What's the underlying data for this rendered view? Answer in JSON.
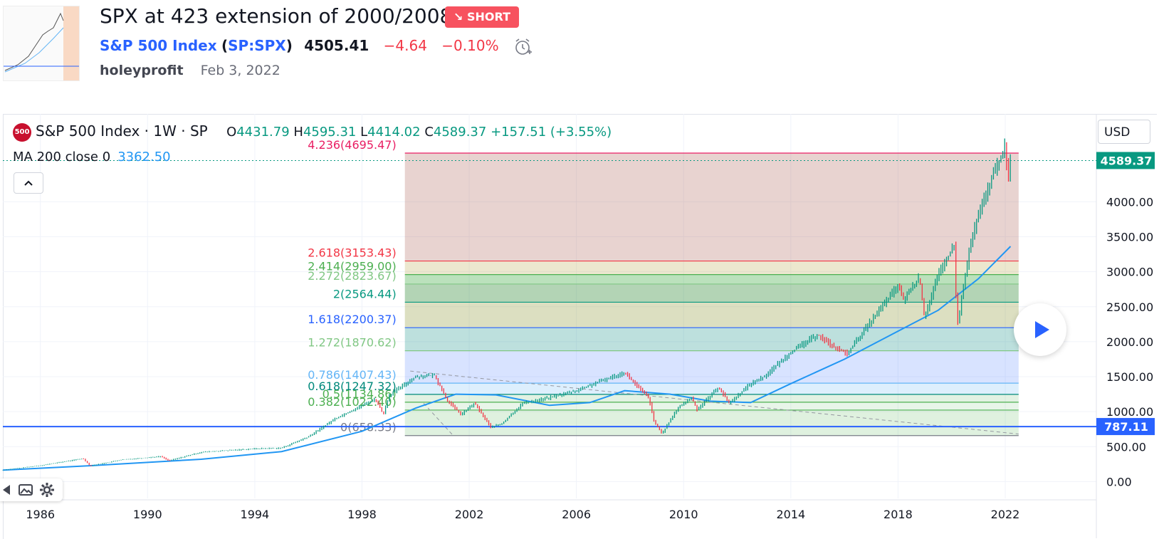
{
  "header": {
    "title": "SPX at 423 extension of 2000/2008",
    "badge": "↘ SHORT",
    "symbol_name": "S&P 500 Index",
    "symbol_ticker": "SP:SPX",
    "price": "4505.41",
    "change": "−4.64",
    "change_pct": "−0.10%",
    "author": "holeyprofit",
    "date": "Feb 3, 2022"
  },
  "legend": {
    "logo": "500",
    "title": "S&P 500 Index · 1W · SP",
    "o_label": "O",
    "o_value": "4431.79",
    "h_label": "H",
    "h_value": "4595.31",
    "l_label": "L",
    "l_value": "4414.02",
    "c_label": "C",
    "c_value": "4589.37",
    "change": "+157.51 (+3.55%)",
    "ma_label": "MA 200 close 0",
    "ma_value": "3362.50",
    "collapse": "^"
  },
  "toolbar": {
    "currency": "USD"
  },
  "colors": {
    "up": "#089981",
    "down": "#f23645",
    "ma": "#2196f3",
    "hline": "#2962ff"
  },
  "chart_data": {
    "type": "line",
    "title": "",
    "x_ticks": [
      "1986",
      "1990",
      "1994",
      "1998",
      "2002",
      "2006",
      "2010",
      "2014",
      "2018",
      "2022"
    ],
    "x_range": [
      1984.6,
      2025.4
    ],
    "y_ticks": [
      "0.00",
      "500.00",
      "1000.00",
      "1500.00",
      "2000.00",
      "2500.00",
      "3000.00",
      "3500.00",
      "4000.00"
    ],
    "y_range": [
      -240,
      4950
    ],
    "price_series": {
      "name": "S&P 500 Index",
      "points": [
        [
          1984.6,
          165
        ],
        [
          1986,
          230
        ],
        [
          1987.6,
          330
        ],
        [
          1987.85,
          225
        ],
        [
          1989,
          310
        ],
        [
          1990.5,
          360
        ],
        [
          1990.8,
          300
        ],
        [
          1992,
          420
        ],
        [
          1994,
          470
        ],
        [
          1995,
          480
        ],
        [
          1996,
          640
        ],
        [
          1997,
          900
        ],
        [
          1998.5,
          1180
        ],
        [
          1998.8,
          960
        ],
        [
          1999,
          1230
        ],
        [
          2000,
          1500
        ],
        [
          2000.7,
          1520
        ],
        [
          2001.2,
          1150
        ],
        [
          2001.7,
          960
        ],
        [
          2002.2,
          1120
        ],
        [
          2002.8,
          780
        ],
        [
          2003.2,
          820
        ],
        [
          2004,
          1120
        ],
        [
          2005,
          1200
        ],
        [
          2006,
          1300
        ],
        [
          2007,
          1450
        ],
        [
          2007.8,
          1560
        ],
        [
          2008.3,
          1350
        ],
        [
          2008.7,
          1200
        ],
        [
          2008.9,
          850
        ],
        [
          2009.2,
          690
        ],
        [
          2009.8,
          1060
        ],
        [
          2010.3,
          1200
        ],
        [
          2010.5,
          1030
        ],
        [
          2011.3,
          1350
        ],
        [
          2011.7,
          1120
        ],
        [
          2012.5,
          1400
        ],
        [
          2013,
          1500
        ],
        [
          2014,
          1850
        ],
        [
          2015,
          2100
        ],
        [
          2015.7,
          1900
        ],
        [
          2016.1,
          1830
        ],
        [
          2017,
          2300
        ],
        [
          2018,
          2800
        ],
        [
          2018.2,
          2600
        ],
        [
          2018.8,
          2920
        ],
        [
          2018.98,
          2350
        ],
        [
          2019.5,
          2950
        ],
        [
          2020.1,
          3380
        ],
        [
          2020.2,
          2200
        ],
        [
          2020.7,
          3400
        ],
        [
          2021,
          3800
        ],
        [
          2021.5,
          4350
        ],
        [
          2022,
          4790
        ],
        [
          2022.1,
          4300
        ],
        [
          2022.2,
          4589
        ]
      ]
    },
    "ma_series": {
      "name": "MA 200 close 0",
      "points": [
        [
          1984.6,
          165
        ],
        [
          1988,
          230
        ],
        [
          1992,
          320
        ],
        [
          1995,
          430
        ],
        [
          1998,
          720
        ],
        [
          2000,
          1050
        ],
        [
          2001.5,
          1250
        ],
        [
          2003,
          1240
        ],
        [
          2005,
          1090
        ],
        [
          2006.5,
          1130
        ],
        [
          2007.8,
          1300
        ],
        [
          2009.5,
          1250
        ],
        [
          2011,
          1150
        ],
        [
          2012.5,
          1130
        ],
        [
          2014,
          1400
        ],
        [
          2016,
          1750
        ],
        [
          2018,
          2150
        ],
        [
          2019.5,
          2450
        ],
        [
          2021,
          2900
        ],
        [
          2022.2,
          3362.5
        ]
      ]
    },
    "fib_levels": [
      {
        "label": "0(658.33)",
        "value": 658.33,
        "color": "#787b86",
        "fill": "rgba(76,175,80,0.18)"
      },
      {
        "label": "0.382(1022.40)",
        "value": 1022.4,
        "color": "#4caf50",
        "fill": "rgba(129,199,132,0.18)"
      },
      {
        "label": "0.5(1134.86)",
        "value": 1134.86,
        "color": "#4caf50",
        "fill": "rgba(76,175,80,0.16)"
      },
      {
        "label": "0.618(1247.32)",
        "value": 1247.32,
        "color": "#00897b",
        "fill": "rgba(100,181,246,0.22)"
      },
      {
        "label": "0.786(1407.43)",
        "value": 1407.43,
        "color": "#64b5f6",
        "fill": "rgba(41,98,255,0.18)"
      },
      {
        "label": "1.272(1870.62)",
        "value": 1870.62,
        "color": "#81c784",
        "fill": "rgba(0,137,123,0.26)"
      },
      {
        "label": "1.618(2200.37)",
        "value": 2200.37,
        "color": "#2962ff",
        "fill": "rgba(139,150,50,0.30)"
      },
      {
        "label": "2(2564.44)",
        "value": 2564.44,
        "color": "#089981",
        "fill": "rgba(56,142,60,0.38)"
      },
      {
        "label": "2.272(2823.67)",
        "value": 2823.67,
        "color": "#81c784",
        "fill": "rgba(76,175,80,0.38)"
      },
      {
        "label": "2.414(2959.00)",
        "value": 2959.0,
        "color": "#4caf50",
        "fill": "rgba(180,160,60,0.25)"
      },
      {
        "label": "2.618(3153.43)",
        "value": 3153.43,
        "color": "#f23645",
        "fill": "rgba(178,110,100,0.30)"
      },
      {
        "label": "4.236(4695.47)",
        "value": 4695.47,
        "color": "#e91e63",
        "fill": ""
      }
    ],
    "fib_x_range": [
      1999.6,
      2022.5
    ],
    "trend_line": {
      "points": [
        [
          1999.8,
          1580
        ],
        [
          2022.5,
          680
        ]
      ]
    },
    "trend_line2": {
      "points": [
        [
          2000.3,
          1120
        ],
        [
          2001.4,
          660
        ]
      ]
    },
    "horizontal_line": {
      "value": 787.11,
      "label": "787.11"
    },
    "last_price_label": "4589.37",
    "last_price": 4589.37
  }
}
